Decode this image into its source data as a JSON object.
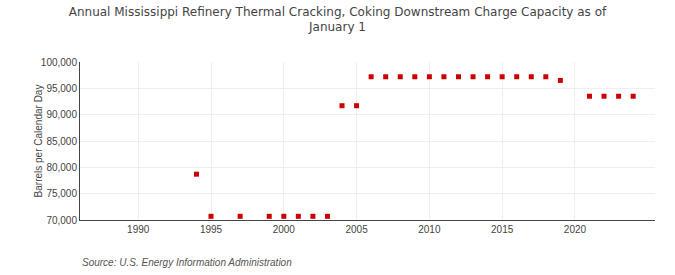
{
  "chart_data": {
    "type": "scatter",
    "title": "Annual Mississippi Refinery Thermal Cracking, Coking Downstream Charge Capacity as of\nJanuary 1",
    "ylabel": "Barrels per Calendar Day",
    "annotations": [
      "Source: U.S. Energy Information Administration"
    ],
    "color": "#cc0000",
    "marker": "square",
    "grid": true,
    "x": [
      1994,
      1995,
      1997,
      1999,
      2000,
      2001,
      2002,
      2003,
      2004,
      2005,
      2006,
      2007,
      2008,
      2009,
      2010,
      2011,
      2012,
      2013,
      2014,
      2015,
      2016,
      2017,
      2018,
      2019,
      2021,
      2022,
      2023,
      2024
    ],
    "values": [
      78700,
      70700,
      70700,
      70700,
      70700,
      70700,
      70700,
      70700,
      91700,
      91700,
      97200,
      97200,
      97200,
      97200,
      97200,
      97200,
      97200,
      97200,
      97200,
      97200,
      97200,
      97200,
      97200,
      96500,
      93500,
      93500,
      93500,
      93500
    ],
    "xlim": [
      1986,
      2025.5
    ],
    "ylim": [
      70000,
      100000
    ],
    "xticks": [
      1990,
      1995,
      2000,
      2005,
      2010,
      2015,
      2020
    ],
    "yticks": [
      {
        "value": 70000,
        "label": "70,000"
      },
      {
        "value": 75000,
        "label": "75,000"
      },
      {
        "value": 80000,
        "label": "80,000"
      },
      {
        "value": 85000,
        "label": "85,000"
      },
      {
        "value": 90000,
        "label": "90,000"
      },
      {
        "value": 95000,
        "label": "95,000"
      },
      {
        "value": 100000,
        "label": "100,000"
      }
    ]
  }
}
